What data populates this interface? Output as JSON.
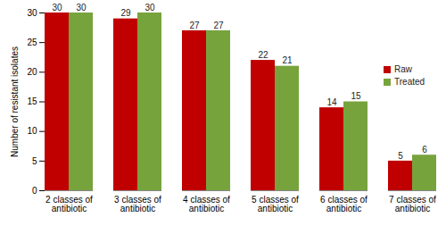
{
  "chart_data": {
    "type": "bar",
    "y_label": "Number of resistant isolates",
    "categories": [
      "2 classes of antibiotic",
      "3 classes of antibiotic",
      "4 classes of antibiotic",
      "5 classes of antibiotic",
      "6 classes of antibiotic",
      "7 classes of antibiotic"
    ],
    "series": [
      {
        "name": "Raw",
        "color": "#c00000",
        "values": [
          30,
          29,
          27,
          22,
          14,
          5
        ]
      },
      {
        "name": "Treated",
        "color": "#77a33d",
        "values": [
          30,
          30,
          27,
          21,
          15,
          6
        ]
      }
    ],
    "ylim": [
      0,
      30
    ],
    "yticks": [
      0,
      5,
      10,
      15,
      20,
      25,
      30
    ],
    "grid": false,
    "legend": "upper right",
    "data_labels": true
  }
}
